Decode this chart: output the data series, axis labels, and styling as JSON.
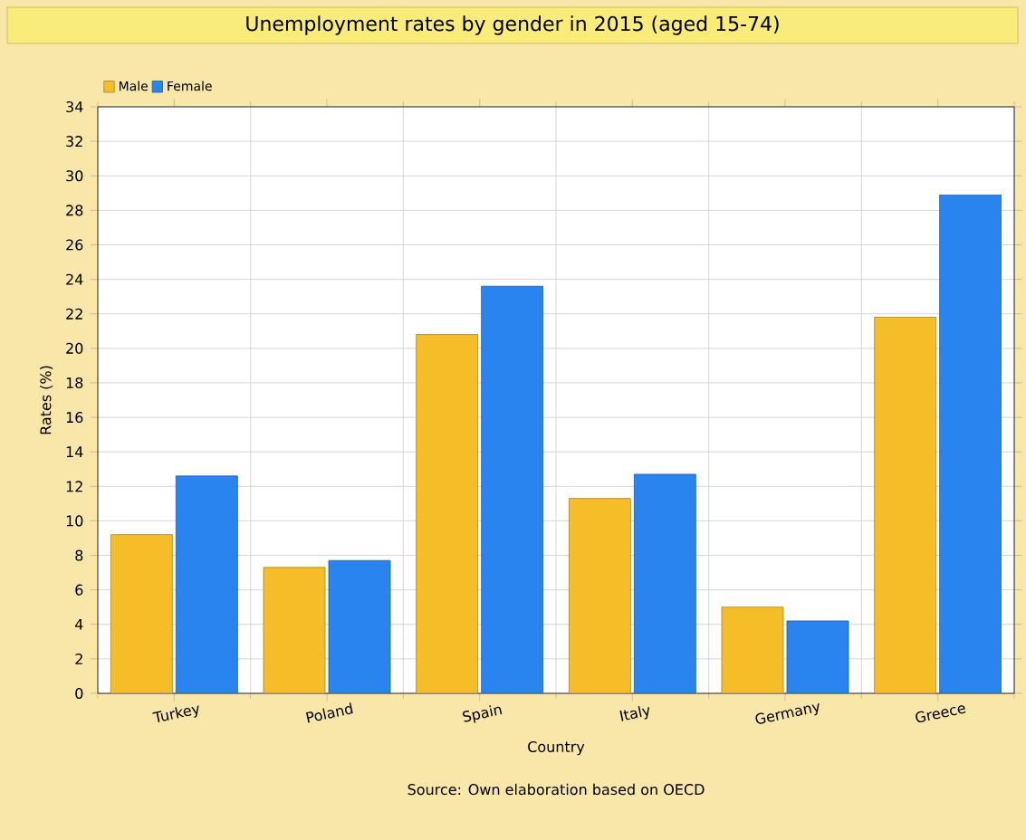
{
  "chart_data": {
    "type": "bar",
    "title": "Unemployment rates by gender in 2015 (aged 15-74)",
    "xlabel": "Country",
    "ylabel": "Rates (%)",
    "annotations": [
      "Source: Own elaboration based on OECD"
    ],
    "categories": [
      "Turkey",
      "Poland",
      "Spain",
      "Italy",
      "Germany",
      "Greece"
    ],
    "series": [
      {
        "name": "Male",
        "color": "#f5bd27",
        "values": [
          9.2,
          7.3,
          20.8,
          11.3,
          5.0,
          21.8
        ]
      },
      {
        "name": "Female",
        "color": "#2a84f0",
        "values": [
          12.6,
          7.7,
          23.6,
          12.7,
          4.2,
          28.9
        ]
      }
    ],
    "ylim": [
      0,
      34
    ],
    "yticks": [
      0,
      2,
      4,
      6,
      8,
      10,
      12,
      14,
      16,
      18,
      20,
      22,
      24,
      26,
      28,
      30,
      32,
      34
    ],
    "grid": true,
    "legend": "top left"
  }
}
